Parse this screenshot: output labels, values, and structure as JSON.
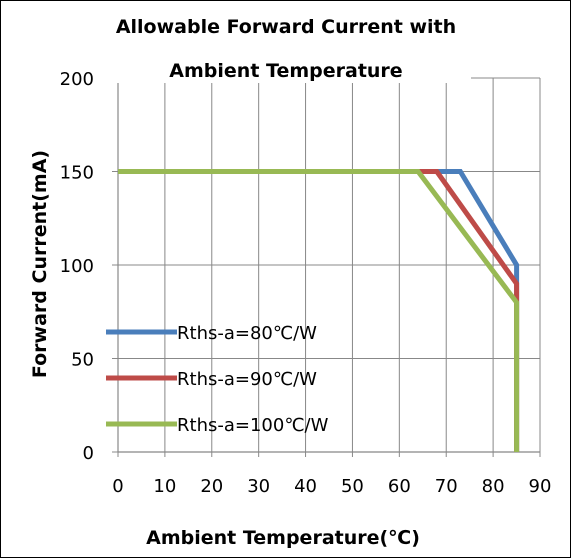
{
  "chart_data": {
    "type": "line",
    "title_lines": [
      "Allowable Forward Current with",
      "Ambient Temperature"
    ],
    "xlabel": "Ambient Temperature(℃)",
    "ylabel": "Forward Current(mA)",
    "xlim": [
      0,
      90
    ],
    "ylim": [
      0,
      200
    ],
    "xticks": [
      0,
      10,
      20,
      30,
      40,
      50,
      60,
      70,
      80,
      90
    ],
    "yticks": [
      0,
      50,
      100,
      150,
      200
    ],
    "grid": true,
    "legend_position": "bottom-left",
    "series": [
      {
        "name": "Rths-a=80℃/W",
        "color": "#4a7ebb",
        "x": [
          0,
          73,
          85,
          85
        ],
        "y": [
          150,
          150,
          100,
          0
        ]
      },
      {
        "name": "Rths-a=90℃/W",
        "color": "#be4b48",
        "x": [
          0,
          68,
          85,
          85
        ],
        "y": [
          150,
          150,
          90,
          0
        ]
      },
      {
        "name": "Rths-a=100℃/W",
        "color": "#98b954",
        "x": [
          0,
          64,
          85,
          85
        ],
        "y": [
          150,
          150,
          80,
          0
        ]
      }
    ]
  }
}
